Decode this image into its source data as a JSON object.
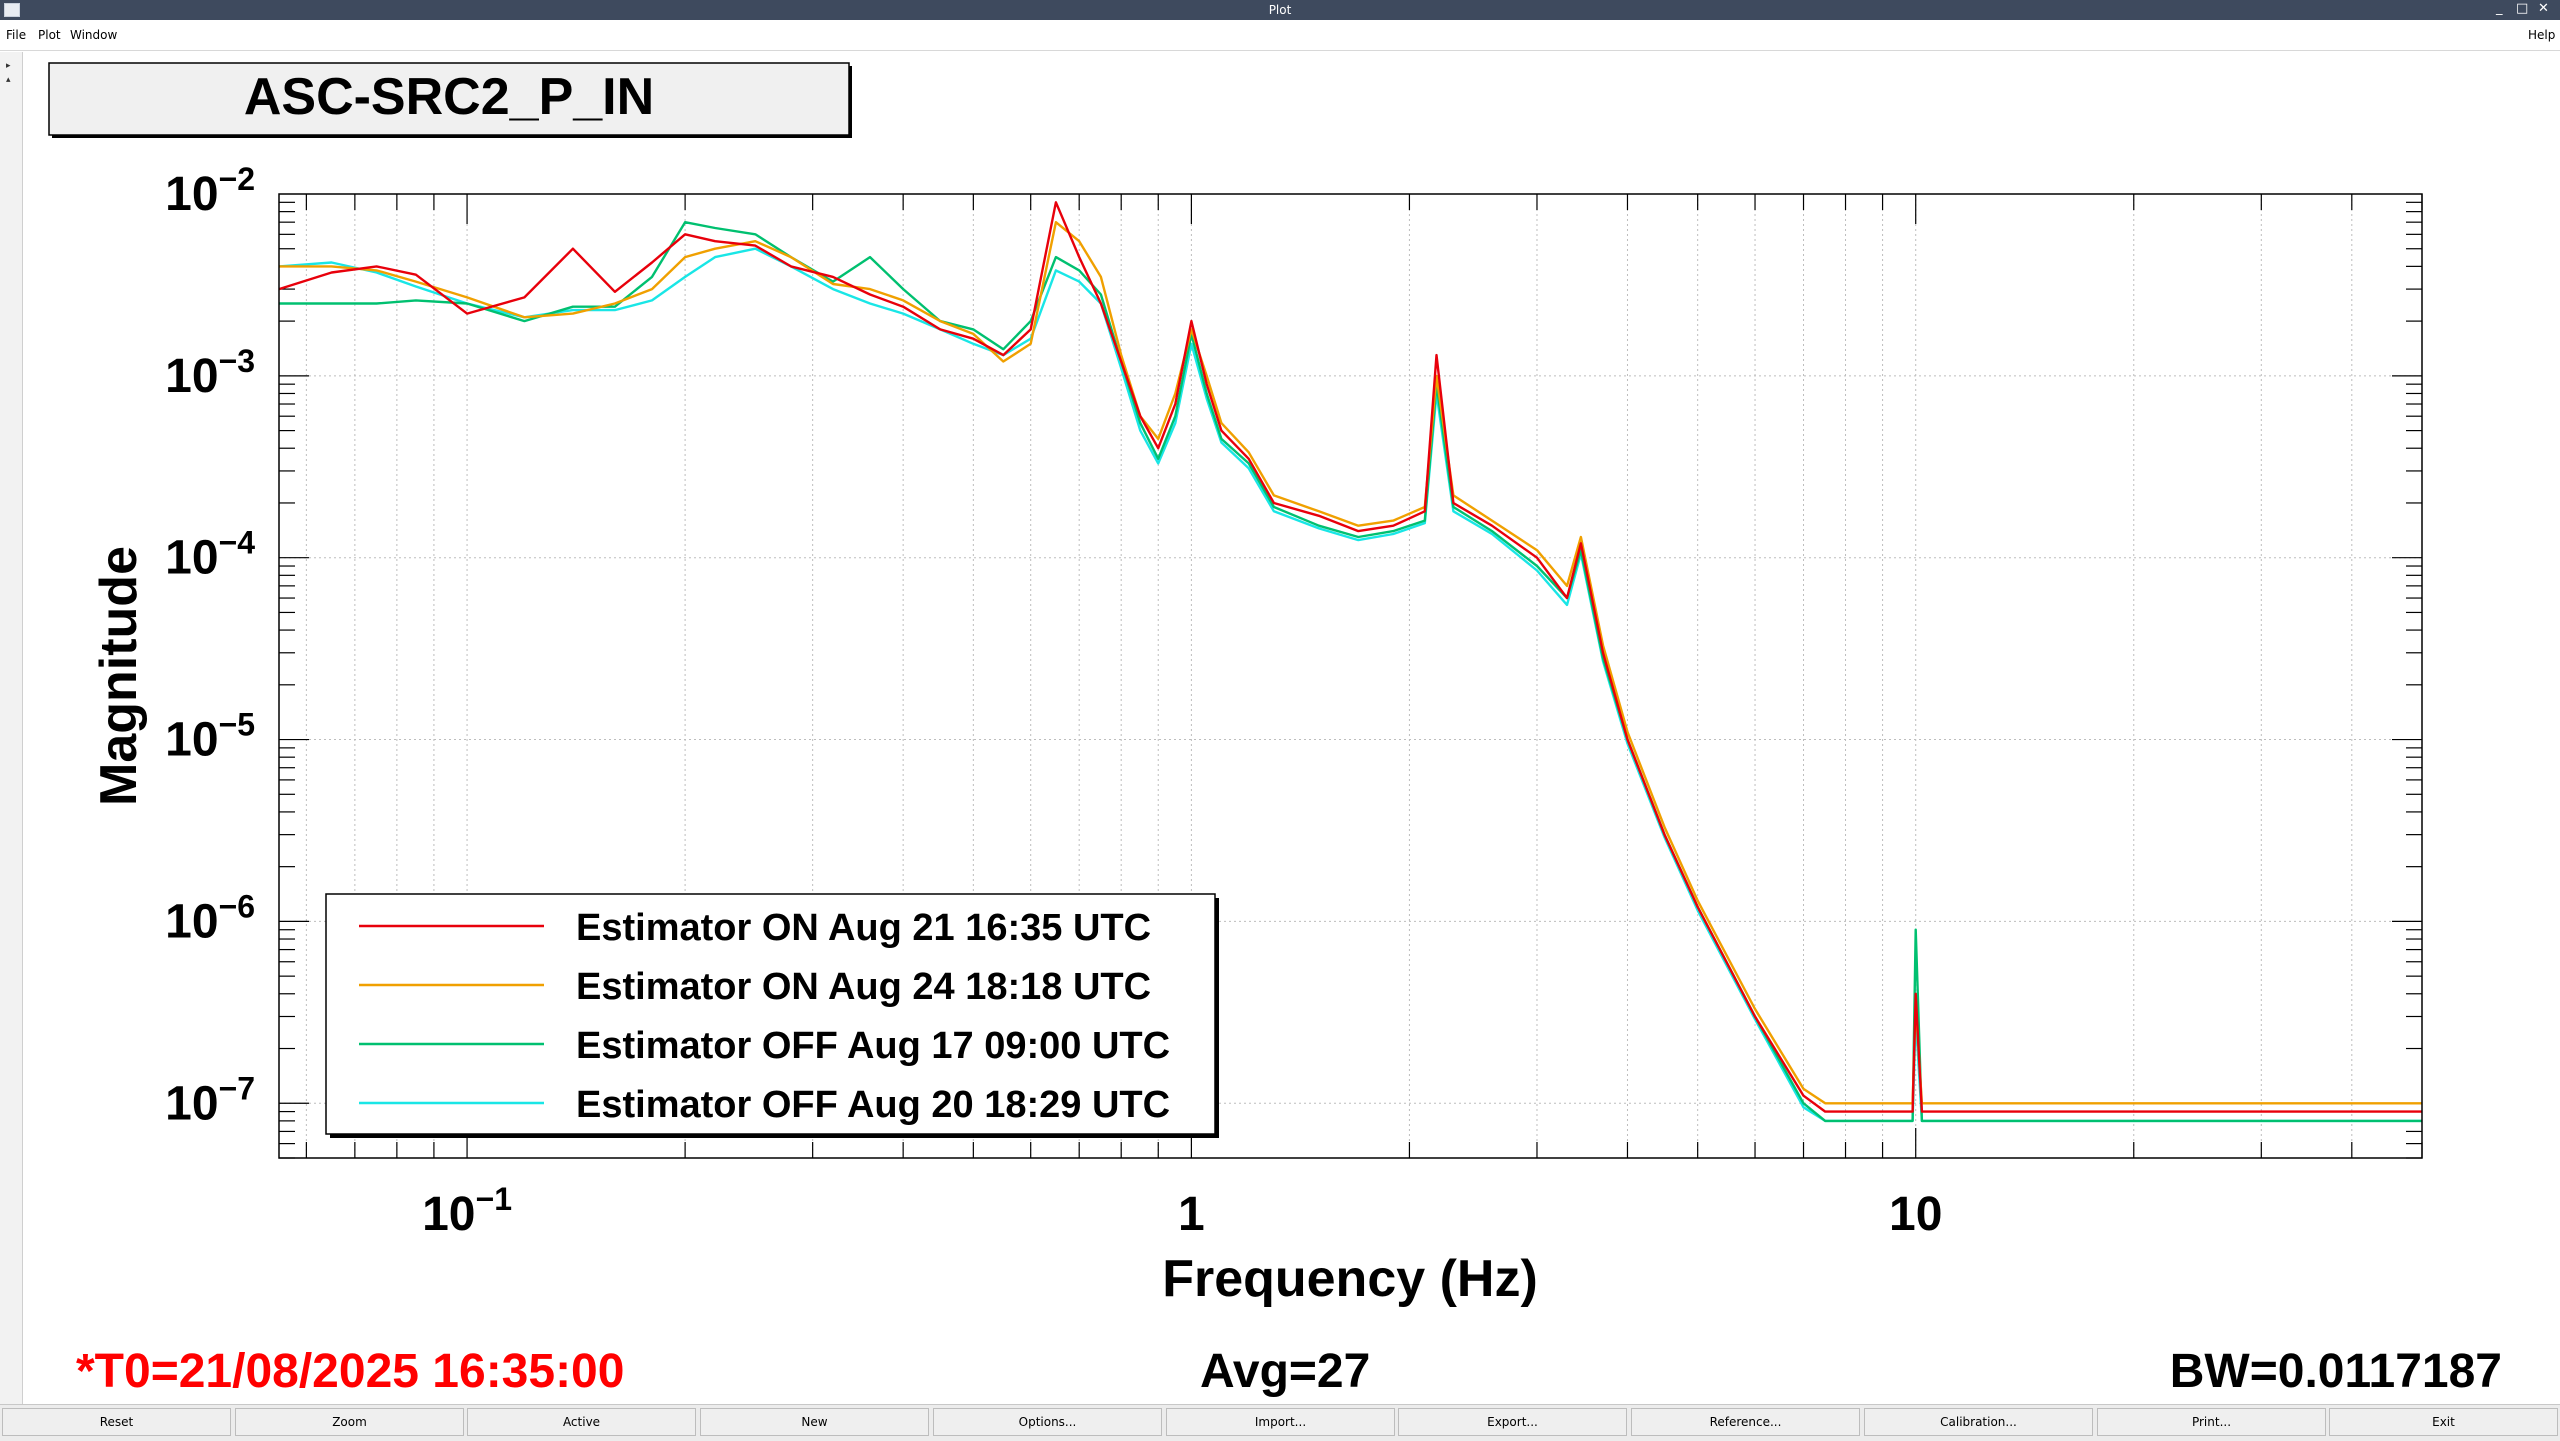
{
  "window": {
    "title": "Plot"
  },
  "menu": {
    "file": "File",
    "plot": "Plot",
    "window": "Window",
    "help": "Help"
  },
  "plot_title": "ASC-SRC2_P_IN",
  "status": {
    "t0": "*T0=21/08/2025 16:35:00",
    "avg": "Avg=27",
    "bw": "BW=0.0117187"
  },
  "buttons": [
    "Reset",
    "Zoom",
    "Active",
    "New",
    "Options...",
    "Import...",
    "Export...",
    "Reference...",
    "Calibration...",
    "Print...",
    "Exit"
  ],
  "colors": {
    "red": "#e8000b",
    "orange": "#f0a000",
    "green": "#00c070",
    "cyan": "#19e6e6",
    "status_red": "#ff0000",
    "titlebar": "#3e4a5e"
  },
  "chart_data": {
    "type": "line",
    "x_scale": "log",
    "y_scale": "log",
    "xlabel": "Frequency (Hz)",
    "ylabel": "Magnitude",
    "xlim": [
      0.055,
      50
    ],
    "ylim": [
      5e-08,
      0.01
    ],
    "x_tick_labels": [
      {
        "value": 0.1,
        "base": "10",
        "exp": "−1"
      },
      {
        "value": 1,
        "base": "1",
        "exp": ""
      },
      {
        "value": 10,
        "base": "10",
        "exp": ""
      }
    ],
    "y_tick_labels": [
      {
        "value": 0.01,
        "base": "10",
        "exp": "−2"
      },
      {
        "value": 0.001,
        "base": "10",
        "exp": "−3"
      },
      {
        "value": 0.0001,
        "base": "10",
        "exp": "−4"
      },
      {
        "value": 1e-05,
        "base": "10",
        "exp": "−5"
      },
      {
        "value": 1e-06,
        "base": "10",
        "exp": "−6"
      },
      {
        "value": 1e-07,
        "base": "10",
        "exp": "−7"
      }
    ],
    "grid": true,
    "legend_position": "bottom-left",
    "series": [
      {
        "name": "Estimator ON Aug 21 16:35 UTC",
        "color": "#e8000b",
        "x": [
          0.055,
          0.065,
          0.075,
          0.085,
          0.1,
          0.12,
          0.14,
          0.16,
          0.18,
          0.2,
          0.22,
          0.25,
          0.28,
          0.32,
          0.36,
          0.4,
          0.45,
          0.5,
          0.55,
          0.6,
          0.65,
          0.7,
          0.75,
          0.8,
          0.85,
          0.9,
          0.95,
          1.0,
          1.05,
          1.1,
          1.2,
          1.3,
          1.5,
          1.7,
          1.9,
          2.1,
          2.18,
          2.3,
          2.6,
          3.0,
          3.3,
          3.45,
          3.7,
          4.0,
          4.5,
          5.0,
          6.0,
          7.0,
          7.5,
          8.0,
          9.0,
          9.9,
          10.0,
          10.2,
          12.0,
          15.0,
          20.0,
          30.0,
          40.0,
          50.0
        ],
        "y": [
          0.003,
          0.0037,
          0.004,
          0.0036,
          0.0022,
          0.0027,
          0.005,
          0.0029,
          0.0042,
          0.006,
          0.0055,
          0.0052,
          0.004,
          0.0035,
          0.0028,
          0.0024,
          0.0018,
          0.0016,
          0.0013,
          0.0018,
          0.009,
          0.0045,
          0.0025,
          0.0012,
          0.0006,
          0.0004,
          0.0007,
          0.002,
          0.0009,
          0.0005,
          0.00035,
          0.0002,
          0.00017,
          0.00014,
          0.00015,
          0.00018,
          0.0013,
          0.0002,
          0.00015,
          0.0001,
          6e-05,
          0.00012,
          3e-05,
          1e-05,
          3e-06,
          1.2e-06,
          3e-07,
          1.1e-07,
          9e-08,
          9e-08,
          9e-08,
          9e-08,
          4e-07,
          9e-08,
          9e-08,
          9e-08,
          9e-08,
          9e-08,
          9e-08,
          9e-08
        ]
      },
      {
        "name": "Estimator ON Aug 24 18:18 UTC",
        "color": "#f0a000",
        "x": [
          0.055,
          0.065,
          0.075,
          0.085,
          0.1,
          0.12,
          0.14,
          0.16,
          0.18,
          0.2,
          0.22,
          0.25,
          0.28,
          0.32,
          0.36,
          0.4,
          0.45,
          0.5,
          0.55,
          0.6,
          0.65,
          0.7,
          0.75,
          0.8,
          0.85,
          0.9,
          0.95,
          1.0,
          1.05,
          1.1,
          1.2,
          1.3,
          1.5,
          1.7,
          1.9,
          2.1,
          2.18,
          2.3,
          2.6,
          3.0,
          3.3,
          3.45,
          3.7,
          4.0,
          4.5,
          5.0,
          6.0,
          7.0,
          7.5,
          8.0,
          9.0,
          9.9,
          10.0,
          10.2,
          12.0,
          15.0,
          20.0,
          30.0,
          40.0,
          50.0
        ],
        "y": [
          0.004,
          0.004,
          0.0038,
          0.0033,
          0.0027,
          0.0021,
          0.0022,
          0.0025,
          0.003,
          0.0045,
          0.005,
          0.0055,
          0.0045,
          0.0032,
          0.003,
          0.0026,
          0.002,
          0.0017,
          0.0012,
          0.0015,
          0.007,
          0.0055,
          0.0035,
          0.0013,
          0.0006,
          0.00045,
          0.0008,
          0.0018,
          0.001,
          0.00055,
          0.00038,
          0.00022,
          0.00018,
          0.00015,
          0.00016,
          0.00019,
          0.001,
          0.00022,
          0.00016,
          0.00011,
          7e-05,
          0.00013,
          3.3e-05,
          1.1e-05,
          3.3e-06,
          1.3e-06,
          3.3e-07,
          1.2e-07,
          1e-07,
          1e-07,
          1e-07,
          1e-07,
          3.5e-07,
          1e-07,
          1e-07,
          1e-07,
          1e-07,
          1e-07,
          1e-07,
          1e-07
        ]
      },
      {
        "name": "Estimator OFF Aug 17 09:00 UTC",
        "color": "#00c070",
        "x": [
          0.055,
          0.065,
          0.075,
          0.085,
          0.1,
          0.12,
          0.14,
          0.16,
          0.18,
          0.2,
          0.22,
          0.25,
          0.28,
          0.32,
          0.36,
          0.4,
          0.45,
          0.5,
          0.55,
          0.6,
          0.65,
          0.7,
          0.75,
          0.8,
          0.85,
          0.9,
          0.95,
          1.0,
          1.05,
          1.1,
          1.2,
          1.3,
          1.5,
          1.7,
          1.9,
          2.1,
          2.18,
          2.3,
          2.6,
          3.0,
          3.3,
          3.45,
          3.7,
          4.0,
          4.5,
          5.0,
          6.0,
          7.0,
          7.5,
          8.0,
          9.0,
          9.9,
          10.0,
          10.2,
          12.0,
          15.0,
          20.0,
          30.0,
          40.0,
          50.0
        ],
        "y": [
          0.0025,
          0.0025,
          0.0025,
          0.0026,
          0.0025,
          0.002,
          0.0024,
          0.0024,
          0.0035,
          0.007,
          0.0065,
          0.006,
          0.0045,
          0.0033,
          0.0045,
          0.003,
          0.002,
          0.0018,
          0.0014,
          0.002,
          0.0045,
          0.0038,
          0.0028,
          0.0012,
          0.00055,
          0.00035,
          0.0006,
          0.0017,
          0.0008,
          0.00045,
          0.00033,
          0.00019,
          0.00015,
          0.00013,
          0.00014,
          0.00016,
          0.0009,
          0.00019,
          0.00014,
          9e-05,
          6e-05,
          0.00011,
          2.8e-05,
          1e-05,
          3e-06,
          1.2e-06,
          3e-07,
          1e-07,
          8e-08,
          8e-08,
          8e-08,
          8e-08,
          9e-07,
          8e-08,
          8e-08,
          8e-08,
          8e-08,
          8e-08,
          8e-08,
          8e-08
        ]
      },
      {
        "name": "Estimator OFF Aug 20 18:29 UTC",
        "color": "#19e6e6",
        "x": [
          0.055,
          0.065,
          0.075,
          0.085,
          0.1,
          0.12,
          0.14,
          0.16,
          0.18,
          0.2,
          0.22,
          0.25,
          0.28,
          0.32,
          0.36,
          0.4,
          0.45,
          0.5,
          0.55,
          0.6,
          0.65,
          0.7,
          0.75,
          0.8,
          0.85,
          0.9,
          0.95,
          1.0,
          1.05,
          1.1,
          1.2,
          1.3,
          1.5,
          1.7,
          1.9,
          2.1,
          2.18,
          2.3,
          2.6,
          3.0,
          3.3,
          3.45,
          3.7,
          4.0,
          4.5,
          5.0,
          6.0,
          7.0,
          7.5,
          8.0,
          9.0,
          9.9,
          10.0,
          10.2,
          12.0,
          15.0,
          20.0,
          30.0,
          40.0,
          50.0
        ],
        "y": [
          0.004,
          0.0042,
          0.0037,
          0.0031,
          0.0025,
          0.0021,
          0.0023,
          0.0023,
          0.0026,
          0.0035,
          0.0045,
          0.005,
          0.004,
          0.003,
          0.0025,
          0.0022,
          0.0018,
          0.0015,
          0.0013,
          0.0016,
          0.0038,
          0.0033,
          0.0025,
          0.0011,
          0.0005,
          0.00033,
          0.00055,
          0.0015,
          0.00075,
          0.00043,
          0.00031,
          0.00018,
          0.000145,
          0.000125,
          0.000135,
          0.000155,
          0.0008,
          0.00018,
          0.000135,
          8.5e-05,
          5.5e-05,
          0.000105,
          2.7e-05,
          9.5e-06,
          2.9e-06,
          1.15e-06,
          2.9e-07,
          9.5e-08,
          8e-08,
          8e-08,
          8e-08,
          8e-08,
          3e-07,
          8e-08,
          8e-08,
          8e-08,
          8e-08,
          8e-08,
          8e-08,
          8e-08
        ]
      }
    ]
  }
}
